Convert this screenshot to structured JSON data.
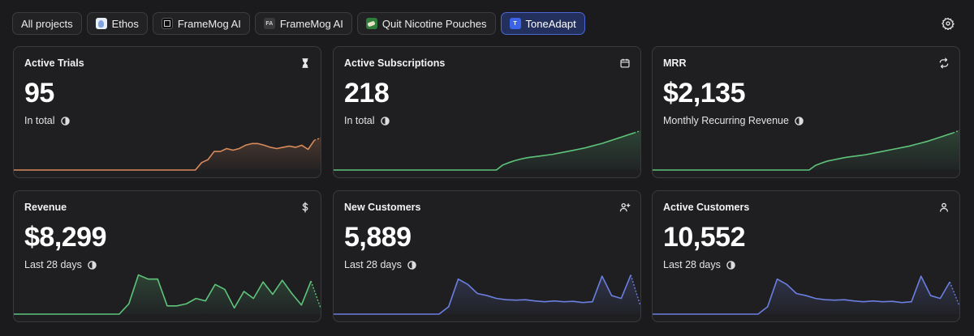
{
  "tabs": [
    {
      "label": "All projects",
      "icon": ""
    },
    {
      "label": "Ethos",
      "icon": "ethos-logo-icon"
    },
    {
      "label": "FrameMog AI",
      "icon": "framemog-logo-icon"
    },
    {
      "label": "FrameMog AI",
      "icon": "framemog-fa-logo-icon",
      "badge": "FA"
    },
    {
      "label": "Quit Nicotine Pouches",
      "icon": "quit-nicotine-logo-icon"
    },
    {
      "label": "ToneAdapt",
      "icon": "toneadapt-logo-icon",
      "badge": "T",
      "active": true
    }
  ],
  "settings_icon": "gear-icon",
  "cards": [
    {
      "title": "Active Trials",
      "value": "95",
      "subtitle": "In total",
      "icon": "hourglass-icon",
      "color": "#d98a5a",
      "values": [
        0,
        0,
        0,
        0,
        0,
        0,
        0,
        0,
        0,
        0,
        0,
        0,
        0,
        0,
        0,
        0,
        0,
        0,
        0,
        0,
        0,
        0,
        0,
        0,
        0,
        0,
        0,
        0,
        0,
        0,
        0.18,
        0.25,
        0.45,
        0.45,
        0.52,
        0.48,
        0.52,
        0.6,
        0.64,
        0.64,
        0.6,
        0.55,
        0.52,
        0.55,
        0.58,
        0.55,
        0.6,
        0.5,
        0.72,
        0.78
      ]
    },
    {
      "title": "Active Subscriptions",
      "value": "218",
      "subtitle": "In total",
      "icon": "calendar-icon",
      "color": "#5ec47a",
      "values": [
        0,
        0,
        0,
        0,
        0,
        0,
        0,
        0,
        0,
        0,
        0,
        0,
        0,
        0,
        0,
        0,
        0,
        0,
        0,
        0,
        0,
        0,
        0,
        0,
        0,
        0,
        0,
        0.12,
        0.18,
        0.23,
        0.27,
        0.3,
        0.32,
        0.34,
        0.36,
        0.38,
        0.41,
        0.44,
        0.47,
        0.5,
        0.53,
        0.57,
        0.61,
        0.65,
        0.7,
        0.75,
        0.8,
        0.85,
        0.9,
        0.95
      ]
    },
    {
      "title": "MRR",
      "value": "$2,135",
      "subtitle": "Monthly Recurring Revenue",
      "icon": "refresh-icon",
      "color": "#5ec47a",
      "values": [
        0,
        0,
        0,
        0,
        0,
        0,
        0,
        0,
        0,
        0,
        0,
        0,
        0,
        0,
        0,
        0,
        0,
        0,
        0,
        0,
        0,
        0,
        0,
        0,
        0,
        0,
        0.11,
        0.17,
        0.22,
        0.25,
        0.28,
        0.31,
        0.33,
        0.35,
        0.37,
        0.4,
        0.43,
        0.46,
        0.49,
        0.52,
        0.55,
        0.58,
        0.62,
        0.66,
        0.7,
        0.75,
        0.8,
        0.85,
        0.9,
        0.96
      ]
    },
    {
      "title": "Revenue",
      "value": "$8,299",
      "subtitle": "Last 28 days",
      "icon": "dollar-icon",
      "color": "#5ec47a",
      "values": [
        0,
        0,
        0,
        0,
        0,
        0,
        0,
        0,
        0,
        0,
        0,
        0,
        0.25,
        0.95,
        0.85,
        0.85,
        0.2,
        0.2,
        0.25,
        0.38,
        0.32,
        0.72,
        0.6,
        0.15,
        0.55,
        0.38,
        0.78,
        0.48,
        0.82,
        0.5,
        0.22,
        0.8,
        0.15
      ]
    },
    {
      "title": "New Customers",
      "value": "5,889",
      "subtitle": "Last 28 days",
      "icon": "user-plus-icon",
      "color": "#6b7fe0",
      "values": [
        0,
        0,
        0,
        0,
        0,
        0,
        0,
        0,
        0,
        0,
        0,
        0,
        0.18,
        0.85,
        0.72,
        0.5,
        0.45,
        0.38,
        0.35,
        0.34,
        0.35,
        0.32,
        0.3,
        0.32,
        0.3,
        0.31,
        0.28,
        0.3,
        0.92,
        0.45,
        0.38,
        0.95,
        0.2
      ]
    },
    {
      "title": "Active Customers",
      "value": "10,552",
      "subtitle": "Last 28 days",
      "icon": "user-icon",
      "color": "#6b7fe0",
      "values": [
        0,
        0,
        0,
        0,
        0,
        0,
        0,
        0,
        0,
        0,
        0,
        0,
        0.18,
        0.85,
        0.72,
        0.5,
        0.45,
        0.38,
        0.35,
        0.34,
        0.35,
        0.32,
        0.3,
        0.32,
        0.3,
        0.31,
        0.28,
        0.3,
        0.92,
        0.45,
        0.38,
        0.78,
        0.2
      ]
    }
  ]
}
